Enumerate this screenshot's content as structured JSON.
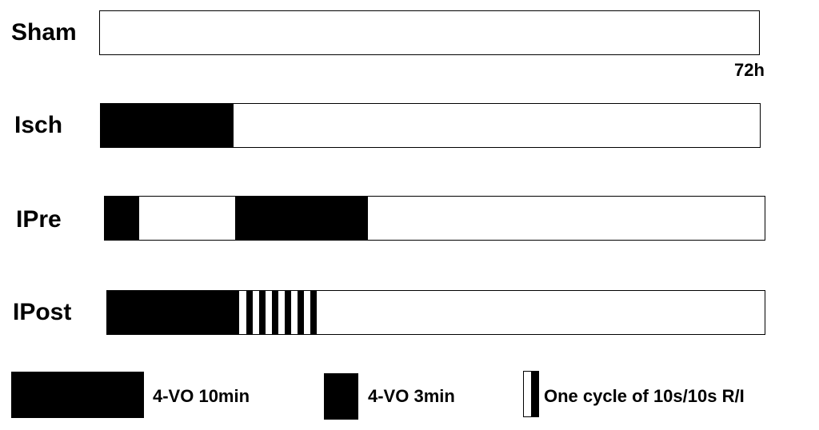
{
  "rows": [
    {
      "label": "Sham"
    },
    {
      "label": "Isch"
    },
    {
      "label": "IPre"
    },
    {
      "label": "IPost"
    }
  ],
  "end_label": "72h",
  "legend": [
    {
      "label": "4-VO 10min"
    },
    {
      "label": "4-VO 3min"
    },
    {
      "label": "One cycle of 10s/10s R/I"
    }
  ],
  "colors": {
    "fill": "#000000",
    "background": "#ffffff"
  }
}
